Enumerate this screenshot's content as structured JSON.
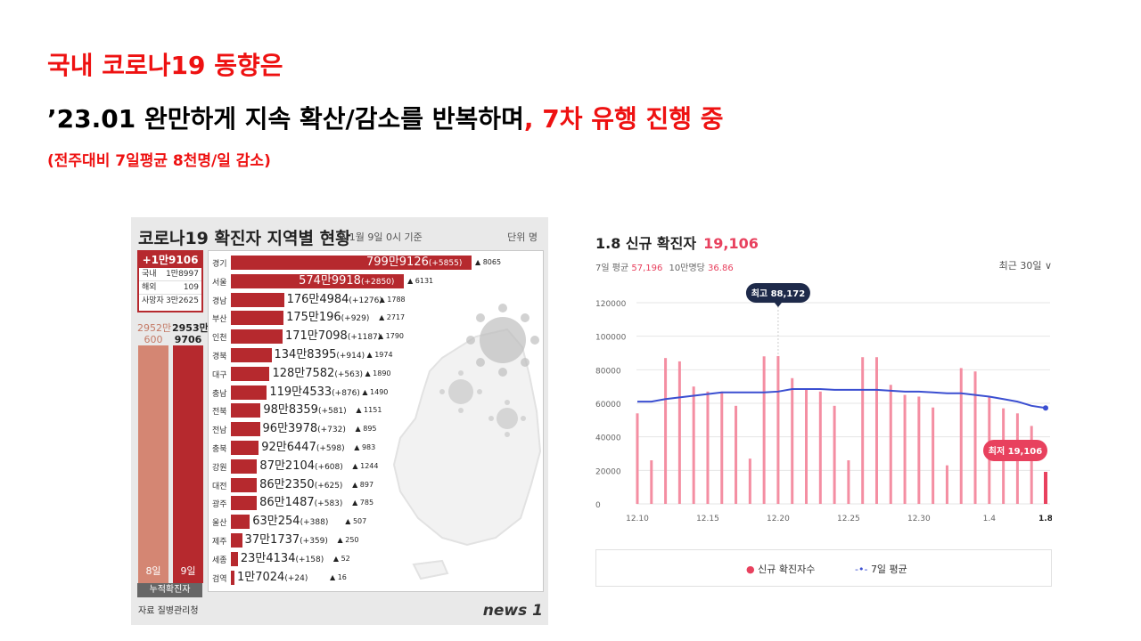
{
  "slide": {
    "title_line1": "국내 코로나19 동향은",
    "title_line2_black": "’23.01 완만하게 지속 확산/감소를 반복하며",
    "title_line2_red": ", 7차 유행 진행 중",
    "subtitle": "(전주대비 7일평균 8천명/일 감소)"
  },
  "infographic": {
    "title": "코로나19 확진자 지역별 현황",
    "note": "※ 1월 9일 0시 기준",
    "unit": "단위 명",
    "today": {
      "headline": "+1만9106",
      "rows": [
        {
          "label": "국내",
          "value": "1만8997"
        },
        {
          "label": "해외",
          "value": "109"
        },
        {
          "label": "사망자",
          "value": "3만2625"
        }
      ]
    },
    "cumulative": {
      "day8_value": "2952만\n600",
      "day9_value": "2953만\n9706",
      "day8_label": "8일",
      "day9_label": "9일",
      "caption": "누적확진자",
      "day8_color": "#d48673",
      "day9_color": "#b6292e"
    },
    "regions": [
      {
        "name": "경기",
        "total": "799만9126",
        "delta": "(+5855)",
        "deaths": "8065",
        "cases": 7999126
      },
      {
        "name": "서울",
        "total": "574만9918",
        "delta": "(+2850)",
        "deaths": "6131",
        "cases": 5749918
      },
      {
        "name": "경남",
        "total": "176만4984",
        "delta": "(+1276)",
        "deaths": "1788",
        "cases": 1764984
      },
      {
        "name": "부산",
        "total": "175만196",
        "delta": "(+929)",
        "deaths": "2717",
        "cases": 1750196
      },
      {
        "name": "인천",
        "total": "171만7098",
        "delta": "(+1187)",
        "deaths": "1790",
        "cases": 1717098
      },
      {
        "name": "경북",
        "total": "134만8395",
        "delta": "(+914)",
        "deaths": "1974",
        "cases": 1348395
      },
      {
        "name": "대구",
        "total": "128만7582",
        "delta": "(+563)",
        "deaths": "1890",
        "cases": 1287582
      },
      {
        "name": "충남",
        "total": "119만4533",
        "delta": "(+876)",
        "deaths": "1490",
        "cases": 1194533
      },
      {
        "name": "전북",
        "total": "98만8359",
        "delta": "(+581)",
        "deaths": "1151",
        "cases": 988359
      },
      {
        "name": "전남",
        "total": "96만3978",
        "delta": "(+732)",
        "deaths": "895",
        "cases": 963978
      },
      {
        "name": "충북",
        "total": "92만6447",
        "delta": "(+598)",
        "deaths": "983",
        "cases": 926447
      },
      {
        "name": "강원",
        "total": "87만2104",
        "delta": "(+608)",
        "deaths": "1244",
        "cases": 872104
      },
      {
        "name": "대전",
        "total": "86만2350",
        "delta": "(+625)",
        "deaths": "897",
        "cases": 862350
      },
      {
        "name": "광주",
        "total": "86만1487",
        "delta": "(+583)",
        "deaths": "785",
        "cases": 861487
      },
      {
        "name": "울산",
        "total": "63만254",
        "delta": "(+388)",
        "deaths": "507",
        "cases": 630254
      },
      {
        "name": "제주",
        "total": "37만1737",
        "delta": "(+359)",
        "deaths": "250",
        "cases": 371737
      },
      {
        "name": "세종",
        "total": "23만4134",
        "delta": "(+158)",
        "deaths": "52",
        "cases": 234134
      },
      {
        "name": "검역",
        "total": "1만7024",
        "delta": "(+24)",
        "deaths": "16",
        "cases": 17024
      }
    ],
    "source": "자료 질병관리청",
    "logo": "news 1"
  },
  "chart_card": {
    "date_label": "1.8 신규 확진자",
    "count": "19,106",
    "avg_label": "7일 평균",
    "avg_value": "57,196",
    "per100k_label": "10만명당",
    "per100k_value": "36.86",
    "period": "최근 30일 ∨",
    "max_label": "최고 88,172",
    "min_label": "최저 19,106",
    "legend_cases": "신규 확진자수",
    "legend_avg": "7일 평균"
  },
  "chart_data": {
    "type": "bar",
    "ylim": [
      0,
      120000
    ],
    "yticks": [
      0,
      20000,
      40000,
      60000,
      80000,
      100000,
      120000
    ],
    "xtick_labels": [
      "12.10",
      "12.15",
      "12.20",
      "12.25",
      "12.30",
      "1.4",
      "1.8"
    ],
    "series": [
      {
        "name": "신규 확진자수",
        "color": "#f48ea2",
        "values": [
          54000,
          26000,
          87000,
          85000,
          70000,
          67000,
          67000,
          58500,
          27000,
          88000,
          88172,
          75000,
          68000,
          67000,
          58500,
          26000,
          87500,
          87500,
          71000,
          65000,
          64000,
          57500,
          23000,
          81000,
          79000,
          64000,
          57000,
          54000,
          46500,
          19106
        ]
      },
      {
        "name": "7일 평균",
        "color": "#3b4fd1",
        "values": [
          61000,
          61000,
          62500,
          63500,
          64500,
          65500,
          66500,
          66500,
          66500,
          66500,
          67000,
          68500,
          68500,
          68500,
          68000,
          68000,
          68000,
          68000,
          67500,
          67000,
          67000,
          66500,
          66000,
          66000,
          65000,
          64000,
          62500,
          61000,
          58500,
          57196
        ]
      }
    ],
    "highlight_color": "#e8415e",
    "label_bg": "#1e2a4a"
  }
}
